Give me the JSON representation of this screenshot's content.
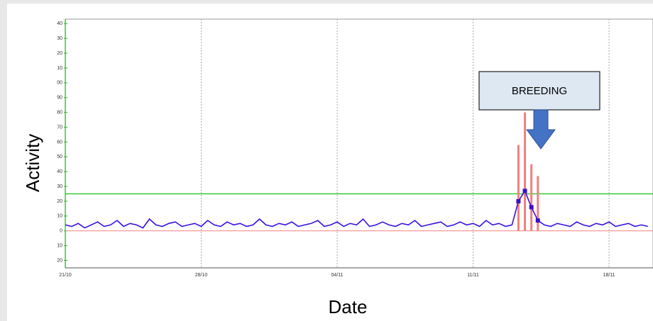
{
  "chart_data": {
    "type": "line",
    "y_label": "Activity",
    "x_label": "Date",
    "annotation": "BREEDING",
    "categories": [
      "21/10",
      null,
      null,
      null,
      null,
      null,
      null,
      null,
      null,
      null,
      null,
      null,
      null,
      null,
      null,
      null,
      null,
      null,
      null,
      null,
      null,
      "28/10",
      null,
      null,
      null,
      null,
      null,
      null,
      null,
      null,
      null,
      null,
      null,
      null,
      null,
      null,
      null,
      null,
      null,
      null,
      null,
      null,
      "04/11",
      null,
      null,
      null,
      null,
      null,
      null,
      null,
      null,
      null,
      null,
      null,
      null,
      null,
      null,
      null,
      null,
      null,
      null,
      null,
      null,
      "11/11",
      null,
      null,
      null,
      null,
      null,
      null,
      null,
      null,
      null,
      null,
      null,
      null,
      null,
      null,
      null,
      null,
      null,
      null,
      null,
      null,
      "18/11",
      null,
      null,
      null,
      null,
      null,
      null
    ],
    "series": [
      {
        "kind": "bar",
        "color": "#f08080",
        "values": [
          0,
          0,
          0,
          0,
          0,
          0,
          0,
          0,
          0,
          0,
          0,
          0,
          0,
          0,
          0,
          0,
          0,
          0,
          0,
          0,
          0,
          0,
          0,
          0,
          0,
          0,
          0,
          0,
          0,
          0,
          0,
          0,
          0,
          0,
          0,
          0,
          0,
          0,
          0,
          0,
          0,
          0,
          0,
          0,
          0,
          0,
          0,
          0,
          0,
          0,
          0,
          0,
          0,
          0,
          0,
          0,
          0,
          0,
          0,
          0,
          0,
          0,
          0,
          0,
          0,
          0,
          0,
          0,
          0,
          0,
          58,
          80,
          45,
          37,
          0,
          0,
          0,
          0,
          0,
          0,
          0,
          0,
          0,
          0,
          0,
          0,
          0,
          0,
          0,
          0,
          0
        ]
      },
      {
        "kind": "line",
        "color": "#3a10e0",
        "values": [
          4,
          3,
          5,
          2,
          4,
          6,
          3,
          4,
          7,
          3,
          5,
          4,
          2,
          8,
          4,
          3,
          5,
          6,
          3,
          4,
          5,
          3,
          7,
          4,
          3,
          6,
          4,
          5,
          3,
          4,
          8,
          4,
          3,
          5,
          4,
          6,
          3,
          4,
          5,
          7,
          3,
          4,
          6,
          3,
          5,
          4,
          8,
          3,
          4,
          6,
          4,
          3,
          5,
          4,
          7,
          3,
          4,
          5,
          6,
          3,
          4,
          6,
          4,
          5,
          3,
          7,
          4,
          5,
          3,
          4,
          20,
          27,
          16,
          7,
          4,
          3,
          5,
          4,
          3,
          6,
          4,
          3,
          5,
          4,
          6,
          3,
          4,
          5,
          3,
          4,
          3
        ]
      }
    ],
    "threshold": {
      "value": 25,
      "color": "#33cc33"
    },
    "ylim": [
      -25,
      143
    ],
    "yticks": [
      {
        "value": 140,
        "label": "40"
      },
      {
        "value": 130,
        "label": "30"
      },
      {
        "value": 120,
        "label": "20"
      },
      {
        "value": 110,
        "label": "10"
      },
      {
        "value": 100,
        "label": "00"
      },
      90,
      80,
      70,
      60,
      50,
      40,
      30,
      20,
      10,
      0,
      {
        "value": -10,
        "label": "10"
      },
      {
        "value": -20,
        "label": "20"
      }
    ],
    "grid": true
  }
}
